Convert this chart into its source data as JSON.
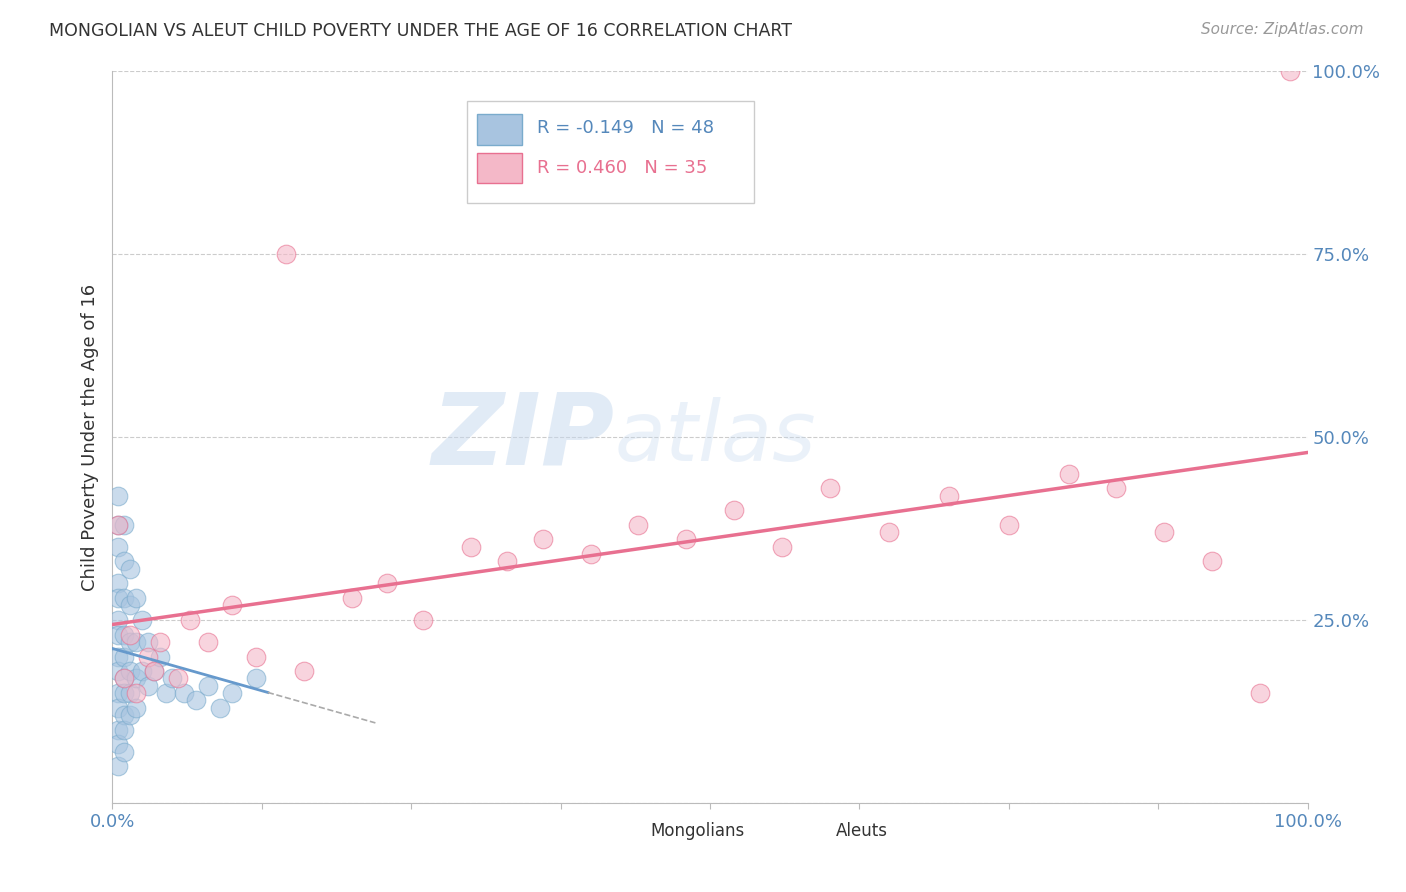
{
  "title": "MONGOLIAN VS ALEUT CHILD POVERTY UNDER THE AGE OF 16 CORRELATION CHART",
  "source": "Source: ZipAtlas.com",
  "ylabel": "Child Poverty Under the Age of 16",
  "xlim": [
    0,
    1.0
  ],
  "ylim": [
    0,
    1.0
  ],
  "xticks": [
    0.0,
    0.125,
    0.25,
    0.375,
    0.5,
    0.625,
    0.75,
    0.875,
    1.0
  ],
  "yticks": [
    0.0,
    0.25,
    0.5,
    0.75,
    1.0
  ],
  "mongolian_color": "#a8c4e0",
  "aleut_color": "#f4b8c8",
  "mongolian_edge_color": "#7aabcc",
  "aleut_edge_color": "#e87090",
  "mongolian_line_color": "#6699cc",
  "aleut_line_color": "#e87090",
  "mongolian_R": -0.149,
  "mongolian_N": 48,
  "aleut_R": 0.46,
  "aleut_N": 35,
  "watermark_zip": "ZIP",
  "watermark_atlas": "atlas",
  "background_color": "#ffffff",
  "grid_color": "#cccccc",
  "tick_color": "#5588bb",
  "mongolian_x": [
    0.005,
    0.005,
    0.005,
    0.005,
    0.005,
    0.005,
    0.005,
    0.005,
    0.005,
    0.005,
    0.005,
    0.005,
    0.005,
    0.005,
    0.01,
    0.01,
    0.01,
    0.01,
    0.01,
    0.01,
    0.01,
    0.01,
    0.01,
    0.01,
    0.015,
    0.015,
    0.015,
    0.015,
    0.015,
    0.015,
    0.02,
    0.02,
    0.02,
    0.02,
    0.025,
    0.025,
    0.03,
    0.03,
    0.035,
    0.04,
    0.045,
    0.05,
    0.06,
    0.07,
    0.08,
    0.09,
    0.1,
    0.12
  ],
  "mongolian_y": [
    0.42,
    0.38,
    0.35,
    0.3,
    0.28,
    0.25,
    0.23,
    0.2,
    0.18,
    0.15,
    0.13,
    0.1,
    0.08,
    0.05,
    0.38,
    0.33,
    0.28,
    0.23,
    0.2,
    0.17,
    0.15,
    0.12,
    0.1,
    0.07,
    0.32,
    0.27,
    0.22,
    0.18,
    0.15,
    0.12,
    0.28,
    0.22,
    0.17,
    0.13,
    0.25,
    0.18,
    0.22,
    0.16,
    0.18,
    0.2,
    0.15,
    0.17,
    0.15,
    0.14,
    0.16,
    0.13,
    0.15,
    0.17
  ],
  "aleut_x": [
    0.005,
    0.01,
    0.015,
    0.02,
    0.03,
    0.035,
    0.04,
    0.055,
    0.065,
    0.08,
    0.1,
    0.12,
    0.145,
    0.16,
    0.2,
    0.23,
    0.26,
    0.3,
    0.33,
    0.36,
    0.4,
    0.44,
    0.48,
    0.52,
    0.56,
    0.6,
    0.65,
    0.7,
    0.75,
    0.8,
    0.84,
    0.88,
    0.92,
    0.96,
    0.985
  ],
  "aleut_y": [
    0.38,
    0.17,
    0.23,
    0.15,
    0.2,
    0.18,
    0.22,
    0.17,
    0.25,
    0.22,
    0.27,
    0.2,
    0.75,
    0.18,
    0.28,
    0.3,
    0.25,
    0.35,
    0.33,
    0.36,
    0.34,
    0.38,
    0.36,
    0.4,
    0.35,
    0.43,
    0.37,
    0.42,
    0.38,
    0.45,
    0.43,
    0.37,
    0.33,
    0.15,
    1.0
  ]
}
